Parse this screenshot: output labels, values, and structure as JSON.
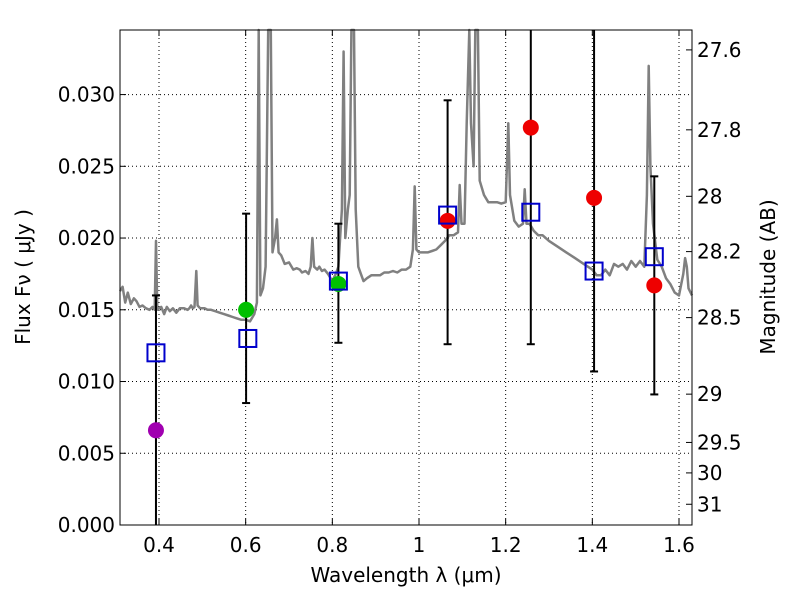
{
  "chart_data": {
    "type": "scatter",
    "title": "",
    "xlabel": "Wavelength  λ (μm)",
    "ylabel": "Flux  Fν  ( μJy )",
    "y2label": "Magnitude (AB)",
    "xlim": [
      0.31,
      1.63
    ],
    "ylim": [
      0.0,
      0.0345
    ],
    "grid": true,
    "xticks": [
      {
        "value": 0.4,
        "label": "0.4"
      },
      {
        "value": 0.6,
        "label": "0.6"
      },
      {
        "value": 0.8,
        "label": "0.8"
      },
      {
        "value": 1.0,
        "label": "1"
      },
      {
        "value": 1.2,
        "label": "1.2"
      },
      {
        "value": 1.4,
        "label": "1.4"
      },
      {
        "value": 1.6,
        "label": "1.6"
      }
    ],
    "yticks": [
      {
        "value": 0.0,
        "label": "0.000"
      },
      {
        "value": 0.005,
        "label": "0.005"
      },
      {
        "value": 0.01,
        "label": "0.010"
      },
      {
        "value": 0.015,
        "label": "0.015"
      },
      {
        "value": 0.02,
        "label": "0.020"
      },
      {
        "value": 0.025,
        "label": "0.025"
      },
      {
        "value": 0.03,
        "label": "0.030"
      }
    ],
    "y2ticks": [
      {
        "mag": 27.6,
        "label": "27.6"
      },
      {
        "mag": 27.8,
        "label": "27.8"
      },
      {
        "mag": 28.0,
        "label": "28"
      },
      {
        "mag": 28.2,
        "label": "28.2"
      },
      {
        "mag": 28.5,
        "label": "28.5"
      },
      {
        "mag": 29.0,
        "label": "29"
      },
      {
        "mag": 29.5,
        "label": "29.5"
      },
      {
        "mag": 30.0,
        "label": "30"
      },
      {
        "mag": 31.0,
        "label": "31"
      }
    ],
    "observed": [
      {
        "x": 0.393,
        "y": 0.0066,
        "err_low": 0.0,
        "err_high": 0.016,
        "color": "#a000b0"
      },
      {
        "x": 0.601,
        "y": 0.015,
        "err_low": 0.0085,
        "err_high": 0.0217,
        "color": "#00c000"
      },
      {
        "x": 0.814,
        "y": 0.0168,
        "err_low": 0.0127,
        "err_high": 0.021,
        "color": "#00c000"
      },
      {
        "x": 1.066,
        "y": 0.0212,
        "err_low": 0.0126,
        "err_high": 0.0296,
        "color": "#ee0000"
      },
      {
        "x": 1.258,
        "y": 0.0277,
        "err_low": 0.0126,
        "err_high": 0.0345,
        "color": "#ee0000"
      },
      {
        "x": 1.404,
        "y": 0.0228,
        "err_low": 0.0107,
        "err_high": 0.0345,
        "color": "#ee0000"
      },
      {
        "x": 1.543,
        "y": 0.0167,
        "err_low": 0.0091,
        "err_high": 0.0243,
        "color": "#ee0000"
      }
    ],
    "model": [
      {
        "x": 0.393,
        "y": 0.012
      },
      {
        "x": 0.605,
        "y": 0.013
      },
      {
        "x": 0.814,
        "y": 0.017
      },
      {
        "x": 1.066,
        "y": 0.0216
      },
      {
        "x": 1.258,
        "y": 0.0218
      },
      {
        "x": 1.404,
        "y": 0.0177
      },
      {
        "x": 1.543,
        "y": 0.0187
      }
    ],
    "spectrum": [
      [
        0.31,
        0.0163
      ],
      [
        0.316,
        0.0166
      ],
      [
        0.322,
        0.0155
      ],
      [
        0.328,
        0.0162
      ],
      [
        0.335,
        0.0154
      ],
      [
        0.342,
        0.0158
      ],
      [
        0.348,
        0.0156
      ],
      [
        0.355,
        0.0152
      ],
      [
        0.362,
        0.0153
      ],
      [
        0.37,
        0.0151
      ],
      [
        0.378,
        0.015
      ],
      [
        0.385,
        0.0152
      ],
      [
        0.39,
        0.015
      ],
      [
        0.393,
        0.0198
      ],
      [
        0.396,
        0.015
      ],
      [
        0.405,
        0.0152
      ],
      [
        0.412,
        0.0147
      ],
      [
        0.418,
        0.0152
      ],
      [
        0.425,
        0.0149
      ],
      [
        0.432,
        0.0151
      ],
      [
        0.44,
        0.0148
      ],
      [
        0.448,
        0.0151
      ],
      [
        0.458,
        0.0151
      ],
      [
        0.466,
        0.015
      ],
      [
        0.47,
        0.0151
      ],
      [
        0.474,
        0.0153
      ],
      [
        0.478,
        0.0151
      ],
      [
        0.482,
        0.0152
      ],
      [
        0.486,
        0.0177
      ],
      [
        0.489,
        0.0153
      ],
      [
        0.495,
        0.0151
      ],
      [
        0.505,
        0.0151
      ],
      [
        0.512,
        0.015
      ],
      [
        0.52,
        0.015
      ],
      [
        0.53,
        0.0149
      ],
      [
        0.54,
        0.0148
      ],
      [
        0.55,
        0.0147
      ],
      [
        0.56,
        0.0146
      ],
      [
        0.57,
        0.0145
      ],
      [
        0.58,
        0.0144
      ],
      [
        0.59,
        0.0143
      ],
      [
        0.6,
        0.0143
      ],
      [
        0.61,
        0.0142
      ],
      [
        0.62,
        0.0147
      ],
      [
        0.626,
        0.0155
      ],
      [
        0.63,
        0.0345
      ],
      [
        0.634,
        0.016
      ],
      [
        0.64,
        0.0165
      ],
      [
        0.646,
        0.018
      ],
      [
        0.652,
        0.0345
      ],
      [
        0.658,
        0.0345
      ],
      [
        0.662,
        0.019
      ],
      [
        0.668,
        0.02
      ],
      [
        0.672,
        0.0213
      ],
      [
        0.676,
        0.019
      ],
      [
        0.682,
        0.0188
      ],
      [
        0.69,
        0.0182
      ],
      [
        0.7,
        0.0183
      ],
      [
        0.71,
        0.0178
      ],
      [
        0.718,
        0.0179
      ],
      [
        0.725,
        0.0178
      ],
      [
        0.73,
        0.0176
      ],
      [
        0.738,
        0.0177
      ],
      [
        0.745,
        0.0175
      ],
      [
        0.75,
        0.018
      ],
      [
        0.754,
        0.02
      ],
      [
        0.758,
        0.018
      ],
      [
        0.765,
        0.0178
      ],
      [
        0.77,
        0.018
      ],
      [
        0.776,
        0.0177
      ],
      [
        0.782,
        0.0178
      ],
      [
        0.79,
        0.0175
      ],
      [
        0.8,
        0.017
      ],
      [
        0.808,
        0.0175
      ],
      [
        0.814,
        0.018
      ],
      [
        0.818,
        0.02
      ],
      [
        0.822,
        0.022
      ],
      [
        0.826,
        0.033
      ],
      [
        0.83,
        0.02
      ],
      [
        0.836,
        0.022
      ],
      [
        0.84,
        0.023
      ],
      [
        0.844,
        0.0345
      ],
      [
        0.85,
        0.0345
      ],
      [
        0.854,
        0.022
      ],
      [
        0.86,
        0.018
      ],
      [
        0.866,
        0.0175
      ],
      [
        0.872,
        0.017
      ],
      [
        0.88,
        0.0172
      ],
      [
        0.89,
        0.0174
      ],
      [
        0.9,
        0.0174
      ],
      [
        0.91,
        0.0174
      ],
      [
        0.92,
        0.0176
      ],
      [
        0.93,
        0.0176
      ],
      [
        0.94,
        0.0177
      ],
      [
        0.95,
        0.0176
      ],
      [
        0.96,
        0.0178
      ],
      [
        0.97,
        0.0178
      ],
      [
        0.98,
        0.018
      ],
      [
        0.986,
        0.0192
      ],
      [
        0.99,
        0.0236
      ],
      [
        0.994,
        0.0192
      ],
      [
        1.0,
        0.019
      ],
      [
        1.01,
        0.019
      ],
      [
        1.02,
        0.019
      ],
      [
        1.03,
        0.0191
      ],
      [
        1.04,
        0.0192
      ],
      [
        1.05,
        0.0195
      ],
      [
        1.06,
        0.0198
      ],
      [
        1.07,
        0.0202
      ],
      [
        1.08,
        0.0202
      ],
      [
        1.09,
        0.0204
      ],
      [
        1.094,
        0.0237
      ],
      [
        1.098,
        0.021
      ],
      [
        1.105,
        0.021
      ],
      [
        1.11,
        0.028
      ],
      [
        1.116,
        0.0345
      ],
      [
        1.12,
        0.028
      ],
      [
        1.126,
        0.025
      ],
      [
        1.13,
        0.0345
      ],
      [
        1.136,
        0.0345
      ],
      [
        1.14,
        0.024
      ],
      [
        1.15,
        0.023
      ],
      [
        1.16,
        0.0225
      ],
      [
        1.17,
        0.0225
      ],
      [
        1.18,
        0.0225
      ],
      [
        1.19,
        0.0224
      ],
      [
        1.2,
        0.0225
      ],
      [
        1.206,
        0.028
      ],
      [
        1.21,
        0.023
      ],
      [
        1.22,
        0.0212
      ],
      [
        1.23,
        0.0208
      ],
      [
        1.24,
        0.021
      ],
      [
        1.244,
        0.0234
      ],
      [
        1.248,
        0.021
      ],
      [
        1.255,
        0.021
      ],
      [
        1.265,
        0.0205
      ],
      [
        1.275,
        0.0202
      ],
      [
        1.285,
        0.0202
      ],
      [
        1.3,
        0.0198
      ],
      [
        1.32,
        0.0194
      ],
      [
        1.34,
        0.019
      ],
      [
        1.36,
        0.0186
      ],
      [
        1.38,
        0.0182
      ],
      [
        1.4,
        0.0178
      ],
      [
        1.41,
        0.0174
      ],
      [
        1.42,
        0.0174
      ],
      [
        1.43,
        0.0178
      ],
      [
        1.44,
        0.0174
      ],
      [
        1.45,
        0.0182
      ],
      [
        1.46,
        0.018
      ],
      [
        1.47,
        0.0182
      ],
      [
        1.48,
        0.0178
      ],
      [
        1.49,
        0.0184
      ],
      [
        1.5,
        0.018
      ],
      [
        1.51,
        0.0184
      ],
      [
        1.52,
        0.018
      ],
      [
        1.526,
        0.023
      ],
      [
        1.53,
        0.032
      ],
      [
        1.534,
        0.025
      ],
      [
        1.54,
        0.021
      ],
      [
        1.55,
        0.0185
      ],
      [
        1.56,
        0.018
      ],
      [
        1.57,
        0.0172
      ],
      [
        1.58,
        0.0168
      ],
      [
        1.59,
        0.0162
      ],
      [
        1.6,
        0.016
      ],
      [
        1.61,
        0.0175
      ],
      [
        1.614,
        0.0186
      ],
      [
        1.618,
        0.018
      ],
      [
        1.622,
        0.0165
      ],
      [
        1.63,
        0.016
      ]
    ],
    "colors": {
      "spectrum": "#808080",
      "model_marker": "#0000cc",
      "errorbar": "#000000",
      "grid": "#000000"
    }
  }
}
